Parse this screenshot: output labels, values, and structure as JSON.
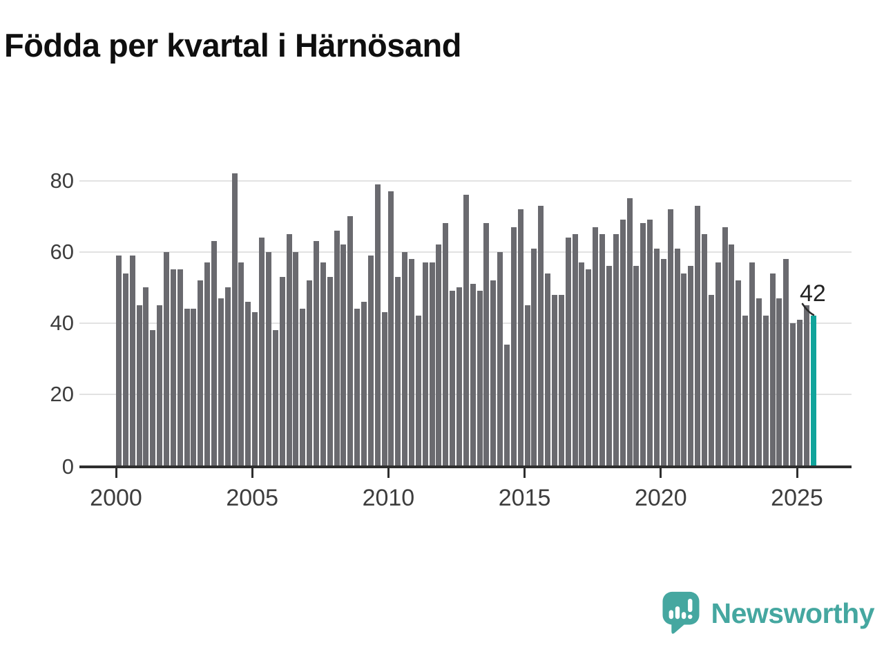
{
  "title": "Födda per kvartal i Härnösand",
  "chart_data": {
    "type": "bar",
    "title": "Födda per kvartal i Härnösand",
    "x_unit": "quarter",
    "start_year": 2000,
    "start_quarter": "Q1",
    "end_label": "2025-Q3",
    "values": [
      59,
      54,
      59,
      45,
      50,
      38,
      45,
      60,
      55,
      55,
      44,
      44,
      52,
      57,
      63,
      47,
      50,
      82,
      57,
      46,
      43,
      64,
      60,
      38,
      53,
      65,
      60,
      44,
      52,
      63,
      57,
      53,
      66,
      62,
      70,
      44,
      46,
      59,
      79,
      43,
      77,
      53,
      60,
      58,
      42,
      57,
      57,
      62,
      68,
      49,
      50,
      76,
      51,
      49,
      68,
      52,
      60,
      34,
      67,
      72,
      45,
      61,
      73,
      54,
      48,
      48,
      64,
      65,
      57,
      55,
      67,
      65,
      56,
      65,
      69,
      75,
      56,
      68,
      69,
      61,
      58,
      72,
      61,
      54,
      56,
      73,
      65,
      48,
      57,
      67,
      62,
      52,
      42,
      57,
      47,
      42,
      54,
      47,
      58,
      40,
      41,
      45,
      42
    ],
    "yticks": [
      0,
      20,
      40,
      60,
      80
    ],
    "xticks": [
      2000,
      2005,
      2010,
      2015,
      2020,
      2025
    ],
    "ylim": [
      0,
      85
    ],
    "grid": "horizontal",
    "legend": "none",
    "highlight": {
      "index": 102,
      "value": 42,
      "label": "42"
    },
    "annotation_label": "42"
  },
  "colors": {
    "bar": "#6a6a6f",
    "highlight": "#10a49b",
    "grid": "#e2e2e2",
    "axis": "#2e2e2e",
    "tick_text": "#3d3d3d",
    "title_text": "#0f0f0f",
    "brand": "#45a7a0",
    "background": "#ffffff"
  },
  "branding": {
    "name": "Newsworthy",
    "icon": "speech-bubble-bar-chart-icon"
  }
}
